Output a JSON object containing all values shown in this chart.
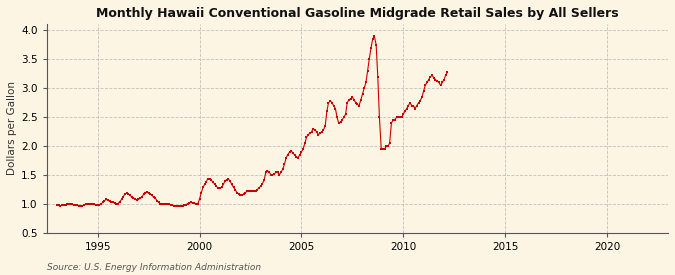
{
  "title": "Monthly Hawaii Conventional Gasoline Midgrade Retail Sales by All Sellers",
  "ylabel": "Dollars per Gallon",
  "source": "Source: U.S. Energy Information Administration",
  "xlim": [
    1992.5,
    2023.0
  ],
  "ylim": [
    0.5,
    4.1
  ],
  "yticks": [
    0.5,
    1.0,
    1.5,
    2.0,
    2.5,
    3.0,
    3.5,
    4.0
  ],
  "xticks": [
    1995,
    2000,
    2005,
    2010,
    2015,
    2020
  ],
  "background_color": "#fdf5e4",
  "line_color": "#cc0000",
  "grid_color": "#bbbbbb",
  "data": [
    [
      1993.0,
      0.975
    ],
    [
      1993.08,
      0.97
    ],
    [
      1993.17,
      0.965
    ],
    [
      1993.25,
      0.97
    ],
    [
      1993.33,
      0.975
    ],
    [
      1993.42,
      0.98
    ],
    [
      1993.5,
      0.985
    ],
    [
      1993.58,
      0.99
    ],
    [
      1993.67,
      0.99
    ],
    [
      1993.75,
      0.985
    ],
    [
      1993.83,
      0.98
    ],
    [
      1993.92,
      0.975
    ],
    [
      1994.0,
      0.97
    ],
    [
      1994.08,
      0.965
    ],
    [
      1994.17,
      0.96
    ],
    [
      1994.25,
      0.965
    ],
    [
      1994.33,
      0.975
    ],
    [
      1994.42,
      0.985
    ],
    [
      1994.5,
      0.99
    ],
    [
      1994.58,
      1.0
    ],
    [
      1994.67,
      1.0
    ],
    [
      1994.75,
      0.995
    ],
    [
      1994.83,
      0.985
    ],
    [
      1994.92,
      0.975
    ],
    [
      1995.0,
      0.975
    ],
    [
      1995.08,
      0.98
    ],
    [
      1995.17,
      0.995
    ],
    [
      1995.25,
      1.02
    ],
    [
      1995.33,
      1.05
    ],
    [
      1995.42,
      1.07
    ],
    [
      1995.5,
      1.06
    ],
    [
      1995.58,
      1.04
    ],
    [
      1995.67,
      1.03
    ],
    [
      1995.75,
      1.02
    ],
    [
      1995.83,
      1.01
    ],
    [
      1995.92,
      1.0
    ],
    [
      1996.0,
      1.0
    ],
    [
      1996.08,
      1.03
    ],
    [
      1996.17,
      1.07
    ],
    [
      1996.25,
      1.12
    ],
    [
      1996.33,
      1.16
    ],
    [
      1996.42,
      1.18
    ],
    [
      1996.5,
      1.17
    ],
    [
      1996.58,
      1.14
    ],
    [
      1996.67,
      1.12
    ],
    [
      1996.75,
      1.1
    ],
    [
      1996.83,
      1.08
    ],
    [
      1996.92,
      1.06
    ],
    [
      1997.0,
      1.07
    ],
    [
      1997.08,
      1.09
    ],
    [
      1997.17,
      1.11
    ],
    [
      1997.25,
      1.16
    ],
    [
      1997.33,
      1.19
    ],
    [
      1997.42,
      1.2
    ],
    [
      1997.5,
      1.19
    ],
    [
      1997.58,
      1.17
    ],
    [
      1997.67,
      1.14
    ],
    [
      1997.75,
      1.11
    ],
    [
      1997.83,
      1.09
    ],
    [
      1997.92,
      1.05
    ],
    [
      1998.0,
      1.02
    ],
    [
      1998.08,
      1.0
    ],
    [
      1998.17,
      0.99
    ],
    [
      1998.25,
      0.985
    ],
    [
      1998.33,
      0.99
    ],
    [
      1998.42,
      0.99
    ],
    [
      1998.5,
      0.985
    ],
    [
      1998.58,
      0.98
    ],
    [
      1998.67,
      0.97
    ],
    [
      1998.75,
      0.965
    ],
    [
      1998.83,
      0.96
    ],
    [
      1998.92,
      0.955
    ],
    [
      1999.0,
      0.95
    ],
    [
      1999.08,
      0.95
    ],
    [
      1999.17,
      0.96
    ],
    [
      1999.25,
      0.97
    ],
    [
      1999.33,
      0.98
    ],
    [
      1999.42,
      1.0
    ],
    [
      1999.5,
      1.01
    ],
    [
      1999.58,
      1.02
    ],
    [
      1999.67,
      1.01
    ],
    [
      1999.75,
      1.005
    ],
    [
      1999.83,
      1.0
    ],
    [
      1999.92,
      1.0
    ],
    [
      2000.0,
      1.08
    ],
    [
      2000.08,
      1.18
    ],
    [
      2000.17,
      1.28
    ],
    [
      2000.25,
      1.33
    ],
    [
      2000.33,
      1.38
    ],
    [
      2000.42,
      1.43
    ],
    [
      2000.5,
      1.42
    ],
    [
      2000.58,
      1.4
    ],
    [
      2000.67,
      1.37
    ],
    [
      2000.75,
      1.33
    ],
    [
      2000.83,
      1.3
    ],
    [
      2000.92,
      1.26
    ],
    [
      2001.0,
      1.26
    ],
    [
      2001.08,
      1.28
    ],
    [
      2001.17,
      1.33
    ],
    [
      2001.25,
      1.39
    ],
    [
      2001.33,
      1.41
    ],
    [
      2001.42,
      1.42
    ],
    [
      2001.5,
      1.39
    ],
    [
      2001.58,
      1.33
    ],
    [
      2001.67,
      1.28
    ],
    [
      2001.75,
      1.24
    ],
    [
      2001.83,
      1.19
    ],
    [
      2001.92,
      1.17
    ],
    [
      2002.0,
      1.14
    ],
    [
      2002.08,
      1.14
    ],
    [
      2002.17,
      1.16
    ],
    [
      2002.25,
      1.19
    ],
    [
      2002.33,
      1.21
    ],
    [
      2002.42,
      1.22
    ],
    [
      2002.5,
      1.22
    ],
    [
      2002.58,
      1.21
    ],
    [
      2002.67,
      1.21
    ],
    [
      2002.75,
      1.22
    ],
    [
      2002.83,
      1.24
    ],
    [
      2002.92,
      1.27
    ],
    [
      2003.0,
      1.3
    ],
    [
      2003.08,
      1.34
    ],
    [
      2003.17,
      1.4
    ],
    [
      2003.25,
      1.54
    ],
    [
      2003.33,
      1.57
    ],
    [
      2003.42,
      1.54
    ],
    [
      2003.5,
      1.5
    ],
    [
      2003.58,
      1.49
    ],
    [
      2003.67,
      1.51
    ],
    [
      2003.75,
      1.54
    ],
    [
      2003.83,
      1.54
    ],
    [
      2003.92,
      1.5
    ],
    [
      2004.0,
      1.54
    ],
    [
      2004.08,
      1.59
    ],
    [
      2004.17,
      1.68
    ],
    [
      2004.25,
      1.79
    ],
    [
      2004.33,
      1.84
    ],
    [
      2004.42,
      1.89
    ],
    [
      2004.5,
      1.91
    ],
    [
      2004.58,
      1.87
    ],
    [
      2004.67,
      1.84
    ],
    [
      2004.75,
      1.81
    ],
    [
      2004.83,
      1.79
    ],
    [
      2004.92,
      1.84
    ],
    [
      2005.0,
      1.89
    ],
    [
      2005.08,
      1.94
    ],
    [
      2005.17,
      2.04
    ],
    [
      2005.25,
      2.14
    ],
    [
      2005.33,
      2.19
    ],
    [
      2005.42,
      2.21
    ],
    [
      2005.5,
      2.24
    ],
    [
      2005.58,
      2.29
    ],
    [
      2005.67,
      2.27
    ],
    [
      2005.75,
      2.24
    ],
    [
      2005.83,
      2.19
    ],
    [
      2005.92,
      2.21
    ],
    [
      2006.0,
      2.24
    ],
    [
      2006.08,
      2.27
    ],
    [
      2006.17,
      2.34
    ],
    [
      2006.25,
      2.59
    ],
    [
      2006.33,
      2.74
    ],
    [
      2006.42,
      2.77
    ],
    [
      2006.5,
      2.74
    ],
    [
      2006.58,
      2.69
    ],
    [
      2006.67,
      2.64
    ],
    [
      2006.75,
      2.49
    ],
    [
      2006.83,
      2.39
    ],
    [
      2006.92,
      2.41
    ],
    [
      2007.0,
      2.44
    ],
    [
      2007.08,
      2.49
    ],
    [
      2007.17,
      2.54
    ],
    [
      2007.25,
      2.74
    ],
    [
      2007.33,
      2.79
    ],
    [
      2007.42,
      2.81
    ],
    [
      2007.5,
      2.84
    ],
    [
      2007.58,
      2.79
    ],
    [
      2007.67,
      2.74
    ],
    [
      2007.75,
      2.71
    ],
    [
      2007.83,
      2.69
    ],
    [
      2007.92,
      2.79
    ],
    [
      2008.0,
      2.89
    ],
    [
      2008.08,
      2.99
    ],
    [
      2008.17,
      3.09
    ],
    [
      2008.25,
      3.29
    ],
    [
      2008.33,
      3.49
    ],
    [
      2008.42,
      3.69
    ],
    [
      2008.5,
      3.84
    ],
    [
      2008.58,
      3.89
    ],
    [
      2008.67,
      3.74
    ],
    [
      2008.75,
      3.19
    ],
    [
      2008.83,
      2.49
    ],
    [
      2008.92,
      1.94
    ],
    [
      2009.0,
      1.94
    ],
    [
      2009.08,
      1.94
    ],
    [
      2009.17,
      1.99
    ],
    [
      2009.25,
      1.99
    ],
    [
      2009.33,
      2.04
    ],
    [
      2009.42,
      2.39
    ],
    [
      2009.5,
      2.44
    ],
    [
      2009.58,
      2.44
    ],
    [
      2009.67,
      2.49
    ],
    [
      2009.75,
      2.49
    ],
    [
      2009.83,
      2.49
    ],
    [
      2009.92,
      2.49
    ],
    [
      2010.0,
      2.54
    ],
    [
      2010.08,
      2.59
    ],
    [
      2010.17,
      2.64
    ],
    [
      2010.25,
      2.69
    ],
    [
      2010.33,
      2.74
    ],
    [
      2010.42,
      2.69
    ],
    [
      2010.5,
      2.69
    ],
    [
      2010.58,
      2.64
    ],
    [
      2010.67,
      2.69
    ],
    [
      2010.75,
      2.74
    ],
    [
      2010.83,
      2.77
    ],
    [
      2010.92,
      2.84
    ],
    [
      2011.0,
      2.94
    ],
    [
      2011.08,
      3.04
    ],
    [
      2011.17,
      3.09
    ],
    [
      2011.25,
      3.14
    ],
    [
      2011.33,
      3.19
    ],
    [
      2011.42,
      3.21
    ],
    [
      2011.5,
      3.17
    ],
    [
      2011.58,
      3.14
    ],
    [
      2011.67,
      3.11
    ],
    [
      2011.75,
      3.09
    ],
    [
      2011.83,
      3.04
    ],
    [
      2011.92,
      3.09
    ],
    [
      2012.0,
      3.14
    ],
    [
      2012.08,
      3.21
    ],
    [
      2012.17,
      3.27
    ]
  ]
}
